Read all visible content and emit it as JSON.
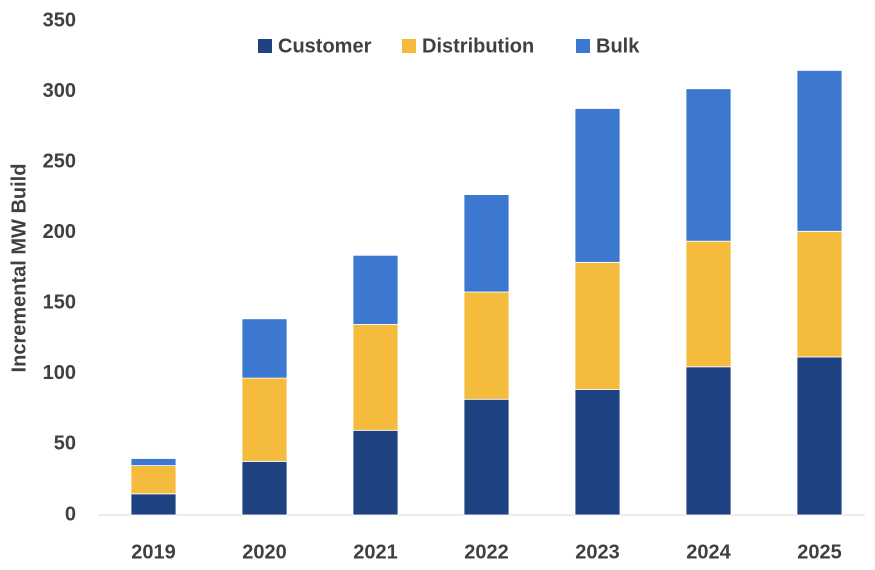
{
  "chart_data": {
    "type": "stacked_bar",
    "y_label": "Incremental MW Build",
    "categories": [
      "2019",
      "2020",
      "2021",
      "2022",
      "2023",
      "2024",
      "2025"
    ],
    "series": [
      {
        "name": "Customer",
        "color": "#1f4283",
        "values": [
          15,
          38,
          60,
          82,
          89,
          105,
          112
        ]
      },
      {
        "name": "Distribution",
        "color": "#f4bb3d",
        "values": [
          20,
          59,
          75,
          76,
          90,
          89,
          89
        ]
      },
      {
        "name": "Bulk",
        "color": "#3d78d0",
        "values": [
          5,
          42,
          49,
          69,
          109,
          108,
          114
        ]
      }
    ],
    "ylim": [
      0,
      350
    ],
    "yticks": [
      0,
      50,
      100,
      150,
      200,
      250,
      300,
      350
    ],
    "grid": false,
    "legend": "top"
  }
}
